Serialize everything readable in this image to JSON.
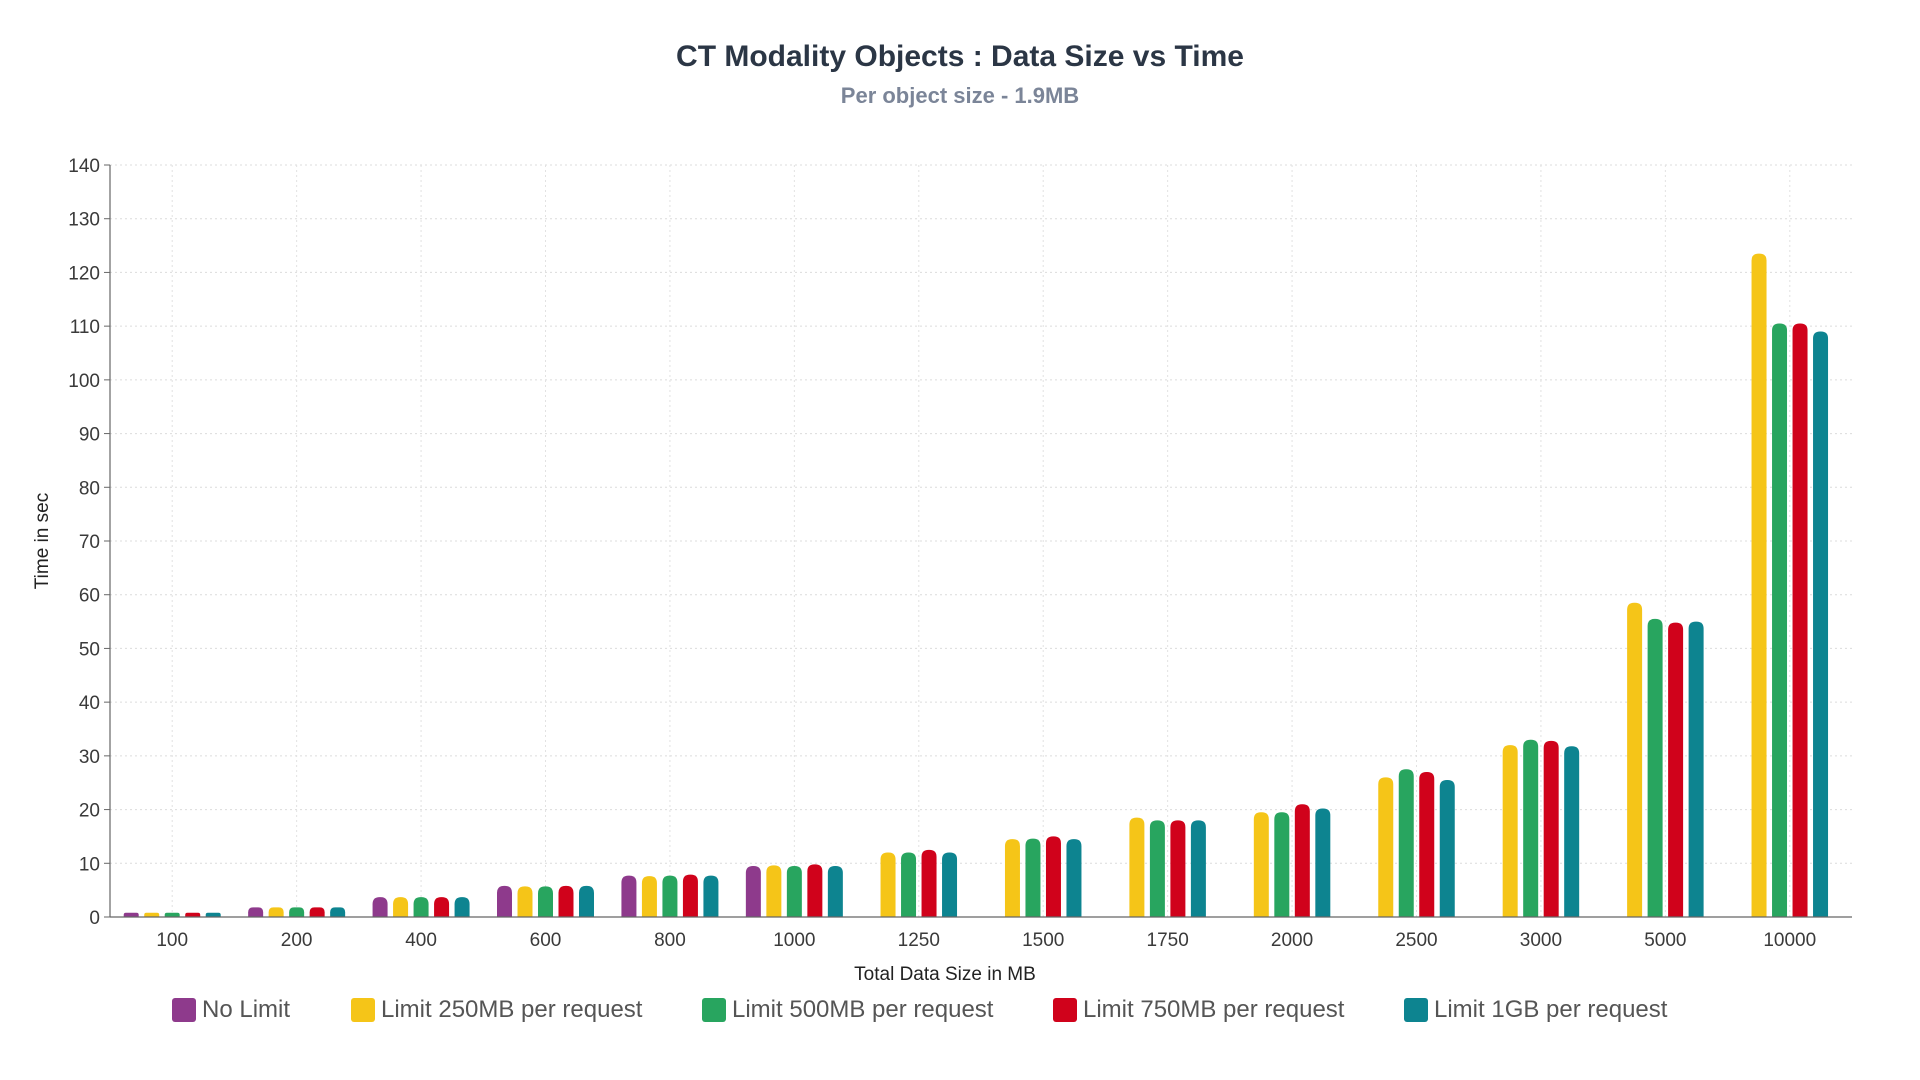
{
  "chart_data": {
    "type": "bar",
    "title": "CT Modality Objects : Data Size vs Time",
    "subtitle": "Per object size - 1.9MB",
    "xlabel": "Total Data Size in MB",
    "ylabel": "Time in sec",
    "ylim": [
      0,
      140
    ],
    "yticks": [
      0,
      10,
      20,
      30,
      40,
      50,
      60,
      70,
      80,
      90,
      100,
      110,
      120,
      130,
      140
    ],
    "grid": true,
    "legend_position": "bottom",
    "categories": [
      "100",
      "200",
      "400",
      "600",
      "800",
      "1000",
      "1250",
      "1500",
      "1750",
      "2000",
      "2500",
      "3000",
      "5000",
      "10000"
    ],
    "series": [
      {
        "name": "No Limit",
        "color": "#8e3a8c",
        "values": [
          0.8,
          1.8,
          3.7,
          5.8,
          7.7,
          9.5,
          null,
          null,
          null,
          null,
          null,
          null,
          null,
          null
        ]
      },
      {
        "name": "Limit 250MB per request",
        "color": "#f5c518",
        "values": [
          0.8,
          1.8,
          3.7,
          5.7,
          7.6,
          9.6,
          12.0,
          14.5,
          18.5,
          19.5,
          26.0,
          32.0,
          58.5,
          123.5
        ]
      },
      {
        "name": "Limit 500MB per request",
        "color": "#28a55f",
        "values": [
          0.8,
          1.8,
          3.7,
          5.7,
          7.7,
          9.5,
          12.0,
          14.6,
          18.0,
          19.5,
          27.5,
          33.0,
          55.5,
          110.5
        ]
      },
      {
        "name": "Limit 750MB per request",
        "color": "#d0021b",
        "values": [
          0.8,
          1.8,
          3.7,
          5.8,
          7.9,
          9.8,
          12.5,
          15.0,
          18.0,
          21.0,
          27.0,
          32.8,
          54.8,
          110.5
        ]
      },
      {
        "name": "Limit 1GB per request",
        "color": "#0d8490",
        "values": [
          0.8,
          1.8,
          3.7,
          5.8,
          7.7,
          9.5,
          12.0,
          14.5,
          18.0,
          20.2,
          25.5,
          31.8,
          55.0,
          109.0
        ]
      }
    ]
  }
}
